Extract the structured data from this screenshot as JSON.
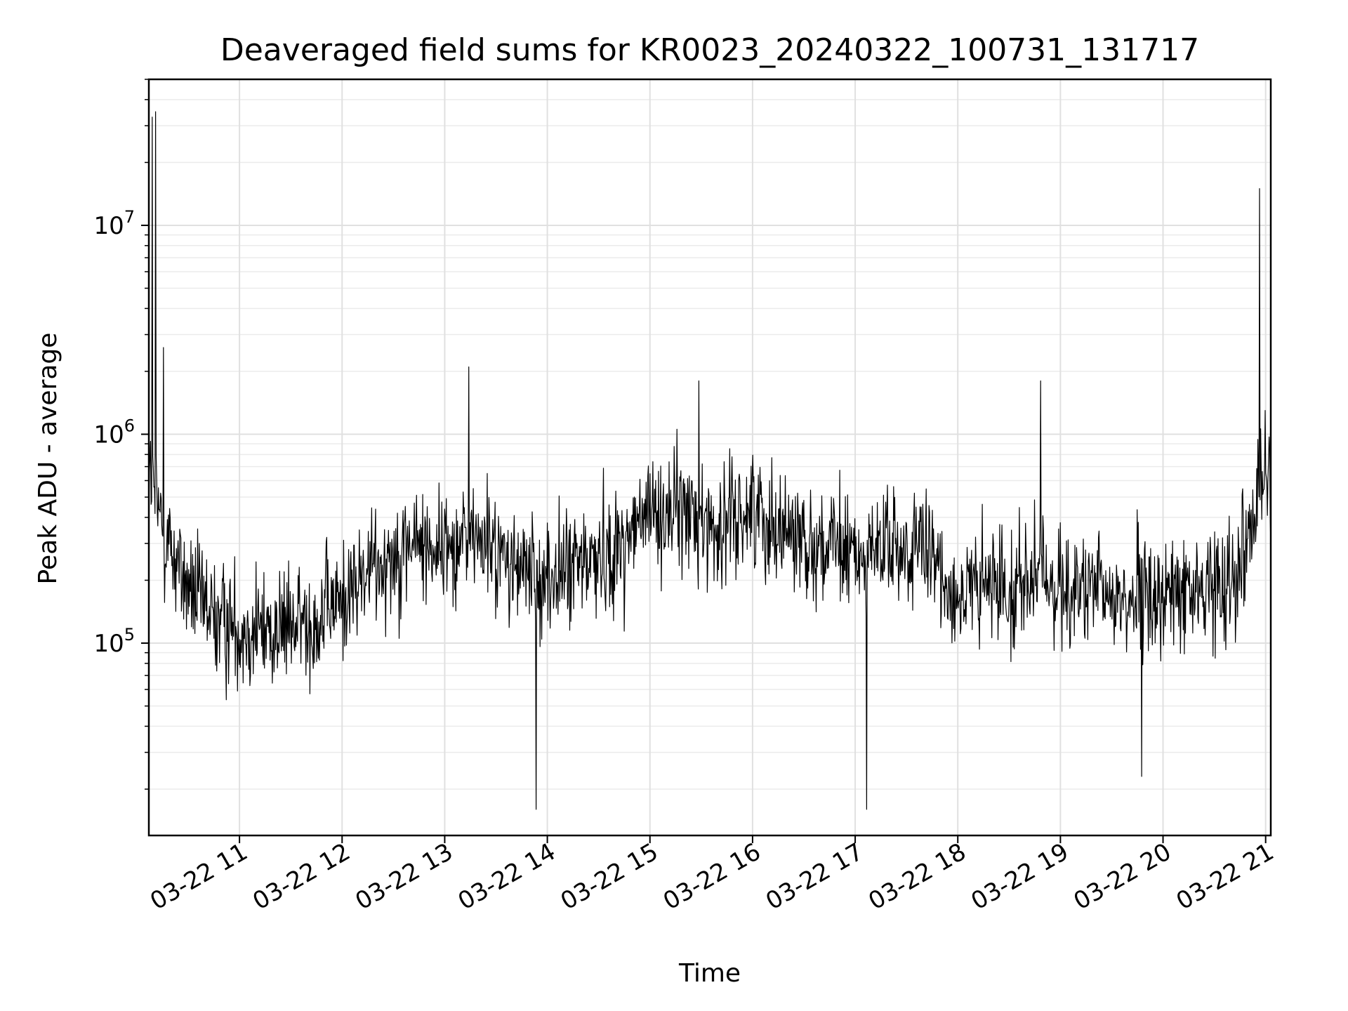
{
  "chart_data": {
    "type": "line",
    "title": "Deaveraged field sums for KR0023_20240322_100731_131717",
    "xlabel": "Time",
    "ylabel": "Peak ADU - average",
    "x_range": [
      "2024-03-22 10:07",
      "2024-03-22 21:03"
    ],
    "ylim": [
      12000,
      50000000
    ],
    "y_scale": "log",
    "grid": true,
    "line_color": "#000000",
    "x_ticks": [
      "03-22 11",
      "03-22 12",
      "03-22 13",
      "03-22 14",
      "03-22 15",
      "03-22 16",
      "03-22 17",
      "03-22 18",
      "03-22 19",
      "03-22 20",
      "03-22 21"
    ],
    "y_ticks": [
      {
        "value": 100000,
        "base": "10",
        "exp": "5"
      },
      {
        "value": 1000000,
        "base": "10",
        "exp": "6"
      },
      {
        "value": 10000000,
        "base": "10",
        "exp": "7"
      }
    ],
    "series": [
      {
        "x": [
          "2024-03-22 10:08",
          "2024-03-22 10:15",
          "2024-03-22 10:30",
          "2024-03-22 10:45",
          "2024-03-22 11:00",
          "2024-03-22 11:20",
          "2024-03-22 11:40",
          "2024-03-22 12:00",
          "2024-03-22 12:20",
          "2024-03-22 12:40",
          "2024-03-22 13:00",
          "2024-03-22 13:20",
          "2024-03-22 13:40",
          "2024-03-22 14:00",
          "2024-03-22 14:20",
          "2024-03-22 14:40",
          "2024-03-22 15:00",
          "2024-03-22 15:20",
          "2024-03-22 15:40",
          "2024-03-22 16:00",
          "2024-03-22 16:20",
          "2024-03-22 16:40",
          "2024-03-22 17:00",
          "2024-03-22 17:20",
          "2024-03-22 17:40",
          "2024-03-22 18:00",
          "2024-03-22 18:20",
          "2024-03-22 18:40",
          "2024-03-22 19:00",
          "2024-03-22 19:20",
          "2024-03-22 19:40",
          "2024-03-22 20:00",
          "2024-03-22 20:20",
          "2024-03-22 20:40",
          "2024-03-22 21:00"
        ],
        "y": [
          600000,
          350000,
          180000,
          130000,
          120000,
          115000,
          125000,
          160000,
          240000,
          300000,
          290000,
          320000,
          230000,
          200000,
          240000,
          280000,
          420000,
          430000,
          350000,
          450000,
          350000,
          290000,
          260000,
          280000,
          270000,
          170000,
          185000,
          200000,
          190000,
          170000,
          165000,
          165000,
          175000,
          210000,
          600000
        ]
      }
    ]
  }
}
